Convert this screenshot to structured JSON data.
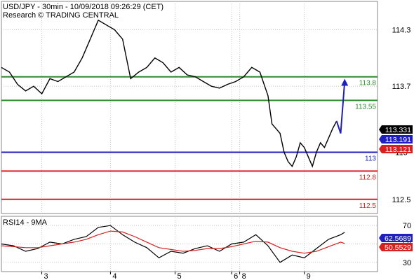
{
  "chart_data": [
    {
      "type": "line",
      "panel": "price",
      "title": "USD/JPY - 30min - 10/09/2018 09:26:29 (CET)",
      "subtitle": "Research © TRADING CENTRAL",
      "ylim": [
        112.35,
        114.6
      ],
      "yticks": [
        "114.3",
        "113.7",
        "113",
        "112.5"
      ],
      "x_day_labels": [
        {
          "label": "3",
          "x": 10
        },
        {
          "label": "4",
          "x": 27
        },
        {
          "label": "5",
          "x": 43
        },
        {
          "label": "6",
          "x": 57
        },
        {
          "label": "8",
          "x": 59
        },
        {
          "label": "9",
          "x": 75
        }
      ],
      "xlim": [
        0,
        90
      ],
      "series": [
        {
          "x": [
            0,
            2,
            4,
            6,
            8,
            10,
            12,
            14,
            16,
            18,
            20,
            22,
            24,
            26,
            28,
            30,
            32,
            34,
            36,
            38,
            40,
            42,
            44,
            46,
            48,
            50,
            52,
            54,
            56,
            58,
            60,
            62,
            64,
            66,
            67,
            68,
            69,
            70,
            71,
            72,
            73,
            74,
            75,
            76,
            77,
            78,
            79,
            80,
            81,
            82,
            83
          ],
          "values": [
            113.9,
            113.85,
            113.72,
            113.65,
            113.7,
            113.62,
            113.78,
            113.75,
            113.8,
            113.85,
            114.0,
            114.2,
            114.4,
            114.35,
            114.3,
            114.2,
            113.78,
            113.85,
            113.9,
            114.0,
            113.95,
            113.85,
            113.9,
            113.82,
            113.8,
            113.75,
            113.7,
            113.68,
            113.72,
            113.75,
            113.8,
            113.9,
            113.85,
            113.6,
            113.3,
            113.25,
            113.2,
            113.0,
            112.9,
            112.85,
            112.95,
            113.1,
            113.05,
            112.95,
            112.85,
            113.0,
            113.1,
            113.05,
            113.15,
            113.25,
            113.33
          ],
          "color": "#000000"
        },
        {
          "x": [
            83,
            84,
            85
          ],
          "values": [
            113.33,
            113.2,
            113.75
          ],
          "color": "#1f1fbf"
        }
      ],
      "levels": [
        {
          "label": "113.8",
          "value": 113.8,
          "color": "#2e8b2e"
        },
        {
          "label": "113.55",
          "value": 113.55,
          "color": "#2e8b2e"
        },
        {
          "label": "113",
          "value": 113.0,
          "color": "#1f1fbf"
        },
        {
          "label": "112.8",
          "value": 112.8,
          "color": "#d62020"
        },
        {
          "label": "112.5",
          "value": 112.5,
          "color": "#d62020"
        }
      ],
      "value_badges": [
        {
          "label": "113.331",
          "value": 113.331,
          "bg": "#000000",
          "fg": "#ffffff"
        },
        {
          "label": "113.191",
          "value": 113.191,
          "bg": "#1f1fbf",
          "fg": "#ffffff"
        },
        {
          "label": "113.121",
          "value": 113.121,
          "bg": "#d62020",
          "fg": "#ffffff"
        }
      ]
    },
    {
      "type": "line",
      "panel": "rsi",
      "title": "RSI14 - 9MA",
      "ylim": [
        20,
        80
      ],
      "yticks": [
        "70",
        "50",
        "30"
      ],
      "series": [
        {
          "x": [
            0,
            3,
            6,
            9,
            12,
            15,
            18,
            21,
            24,
            27,
            30,
            33,
            36,
            39,
            42,
            45,
            48,
            51,
            54,
            57,
            60,
            63,
            66,
            69,
            72,
            75,
            78,
            81,
            84,
            85
          ],
          "values": [
            50,
            48,
            42,
            45,
            52,
            50,
            55,
            58,
            68,
            70,
            60,
            52,
            46,
            35,
            42,
            40,
            45,
            48,
            42,
            50,
            52,
            60,
            48,
            30,
            38,
            35,
            45,
            55,
            60,
            62.57
          ],
          "color": "#000000"
        },
        {
          "x": [
            0,
            3,
            6,
            9,
            12,
            15,
            18,
            21,
            24,
            27,
            30,
            33,
            36,
            39,
            42,
            45,
            48,
            51,
            54,
            57,
            60,
            63,
            66,
            69,
            72,
            75,
            78,
            81,
            84,
            85
          ],
          "values": [
            48,
            47,
            46,
            46,
            48,
            50,
            52,
            55,
            60,
            64,
            63,
            58,
            52,
            46,
            44,
            42,
            43,
            45,
            45,
            47,
            50,
            53,
            52,
            46,
            42,
            40,
            42,
            47,
            52,
            50.55
          ],
          "color": "#d62020"
        }
      ],
      "value_badges": [
        {
          "label": "62.5689",
          "value": 62.5689,
          "bg": "#1f1fbf",
          "fg": "#ffffff"
        },
        {
          "label": "50.5529",
          "value": 50.5529,
          "bg": "#d62020",
          "fg": "#ffffff"
        }
      ]
    }
  ],
  "colors": {
    "price": "#000000",
    "bollinger": "#d62020",
    "moving_average": "#1f1fbf",
    "resistance": "#2e8b2e",
    "pivot": "#1f1fbf",
    "support": "#d62020",
    "forecast": "#1f1fbf",
    "grid": "#c8c8c8"
  }
}
